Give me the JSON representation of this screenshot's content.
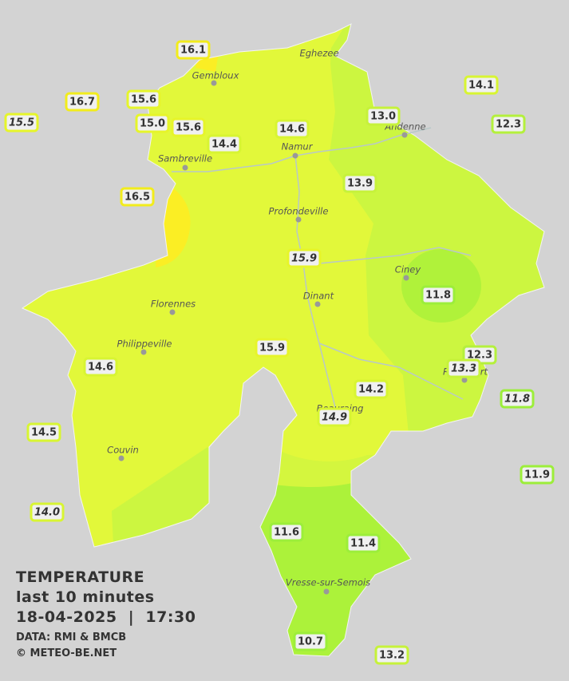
{
  "map": {
    "legend": {
      "title": "TEMPERATURE",
      "period": "last 10 minutes",
      "datetime": "18-04-2025  |  17:30",
      "source": "DATA: RMI & BMCB",
      "copyright": "© METEO-BE.NET"
    },
    "towns": [
      "Eghezee",
      "Gembloux",
      "Andenne",
      "Namur",
      "Sambreville",
      "Profondeville",
      "Ciney",
      "Dinant",
      "Florennes",
      "Philippeville",
      "Rochefort",
      "Beauraing",
      "Couvin",
      "Vresse-sur-Semois"
    ],
    "stations": [
      {
        "label": "16.1"
      },
      {
        "label": "16.7"
      },
      {
        "label": "15.6"
      },
      {
        "label": "15.5",
        "italic": true
      },
      {
        "label": "15.0"
      },
      {
        "label": "15.6"
      },
      {
        "label": "14.4"
      },
      {
        "label": "14.6"
      },
      {
        "label": "13.0"
      },
      {
        "label": "14.1"
      },
      {
        "label": "12.3"
      },
      {
        "label": "16.5"
      },
      {
        "label": "13.9"
      },
      {
        "label": "15.9",
        "italic": true
      },
      {
        "label": "11.8"
      },
      {
        "label": "15.9"
      },
      {
        "label": "12.3"
      },
      {
        "label": "13.3",
        "italic": true
      },
      {
        "label": "14.6"
      },
      {
        "label": "14.2"
      },
      {
        "label": "11.8",
        "italic": true
      },
      {
        "label": "14.9",
        "italic": true
      },
      {
        "label": "14.5"
      },
      {
        "label": "14.0",
        "italic": true
      },
      {
        "label": "11.9"
      },
      {
        "label": "11.6"
      },
      {
        "label": "11.4"
      },
      {
        "label": "10.7"
      },
      {
        "label": "13.2"
      }
    ]
  }
}
